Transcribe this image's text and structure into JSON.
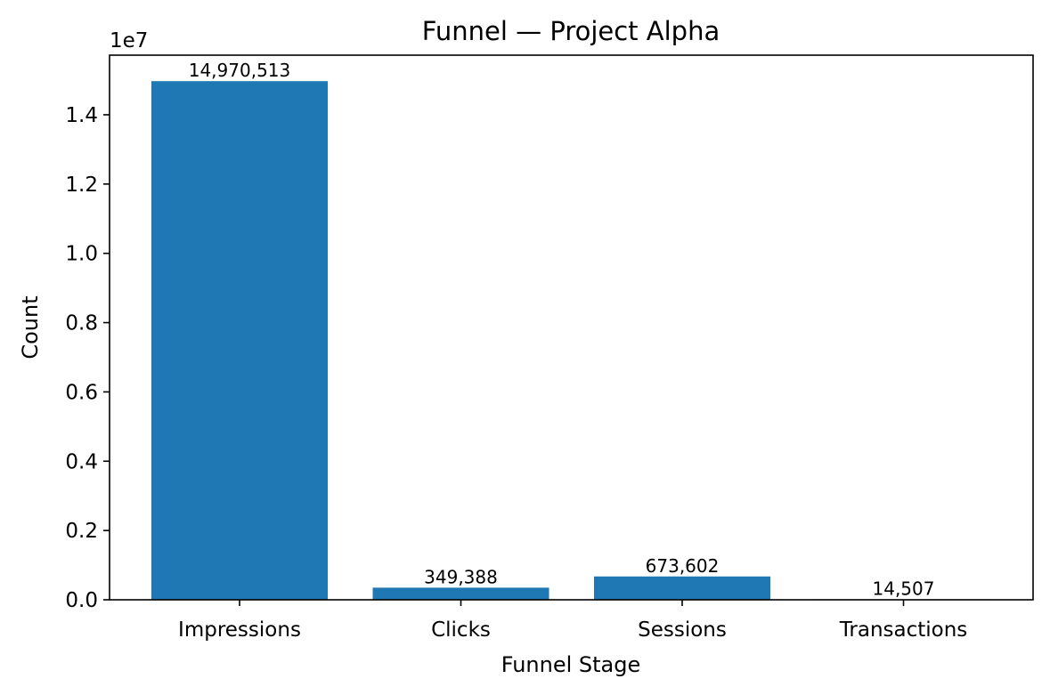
{
  "chart_data": {
    "type": "bar",
    "title": "Funnel — Project Alpha",
    "xlabel": "Funnel Stage",
    "ylabel": "Count",
    "categories": [
      "Impressions",
      "Clicks",
      "Sessions",
      "Transactions"
    ],
    "values": [
      14970513,
      349388,
      673602,
      14507
    ],
    "data_labels": [
      "14,970,513",
      "349,388",
      "673,602",
      "14,507"
    ],
    "ylim": [
      0,
      15720000
    ],
    "y_ticks": [
      0,
      2000000,
      4000000,
      6000000,
      8000000,
      10000000,
      12000000,
      14000000
    ],
    "y_tick_labels": [
      "0.0",
      "0.2",
      "0.4",
      "0.6",
      "0.8",
      "1.0",
      "1.2",
      "1.4"
    ],
    "y_offset_label": "1e7",
    "grid": false,
    "legend": "none",
    "bar_color": "#1f77b4"
  }
}
